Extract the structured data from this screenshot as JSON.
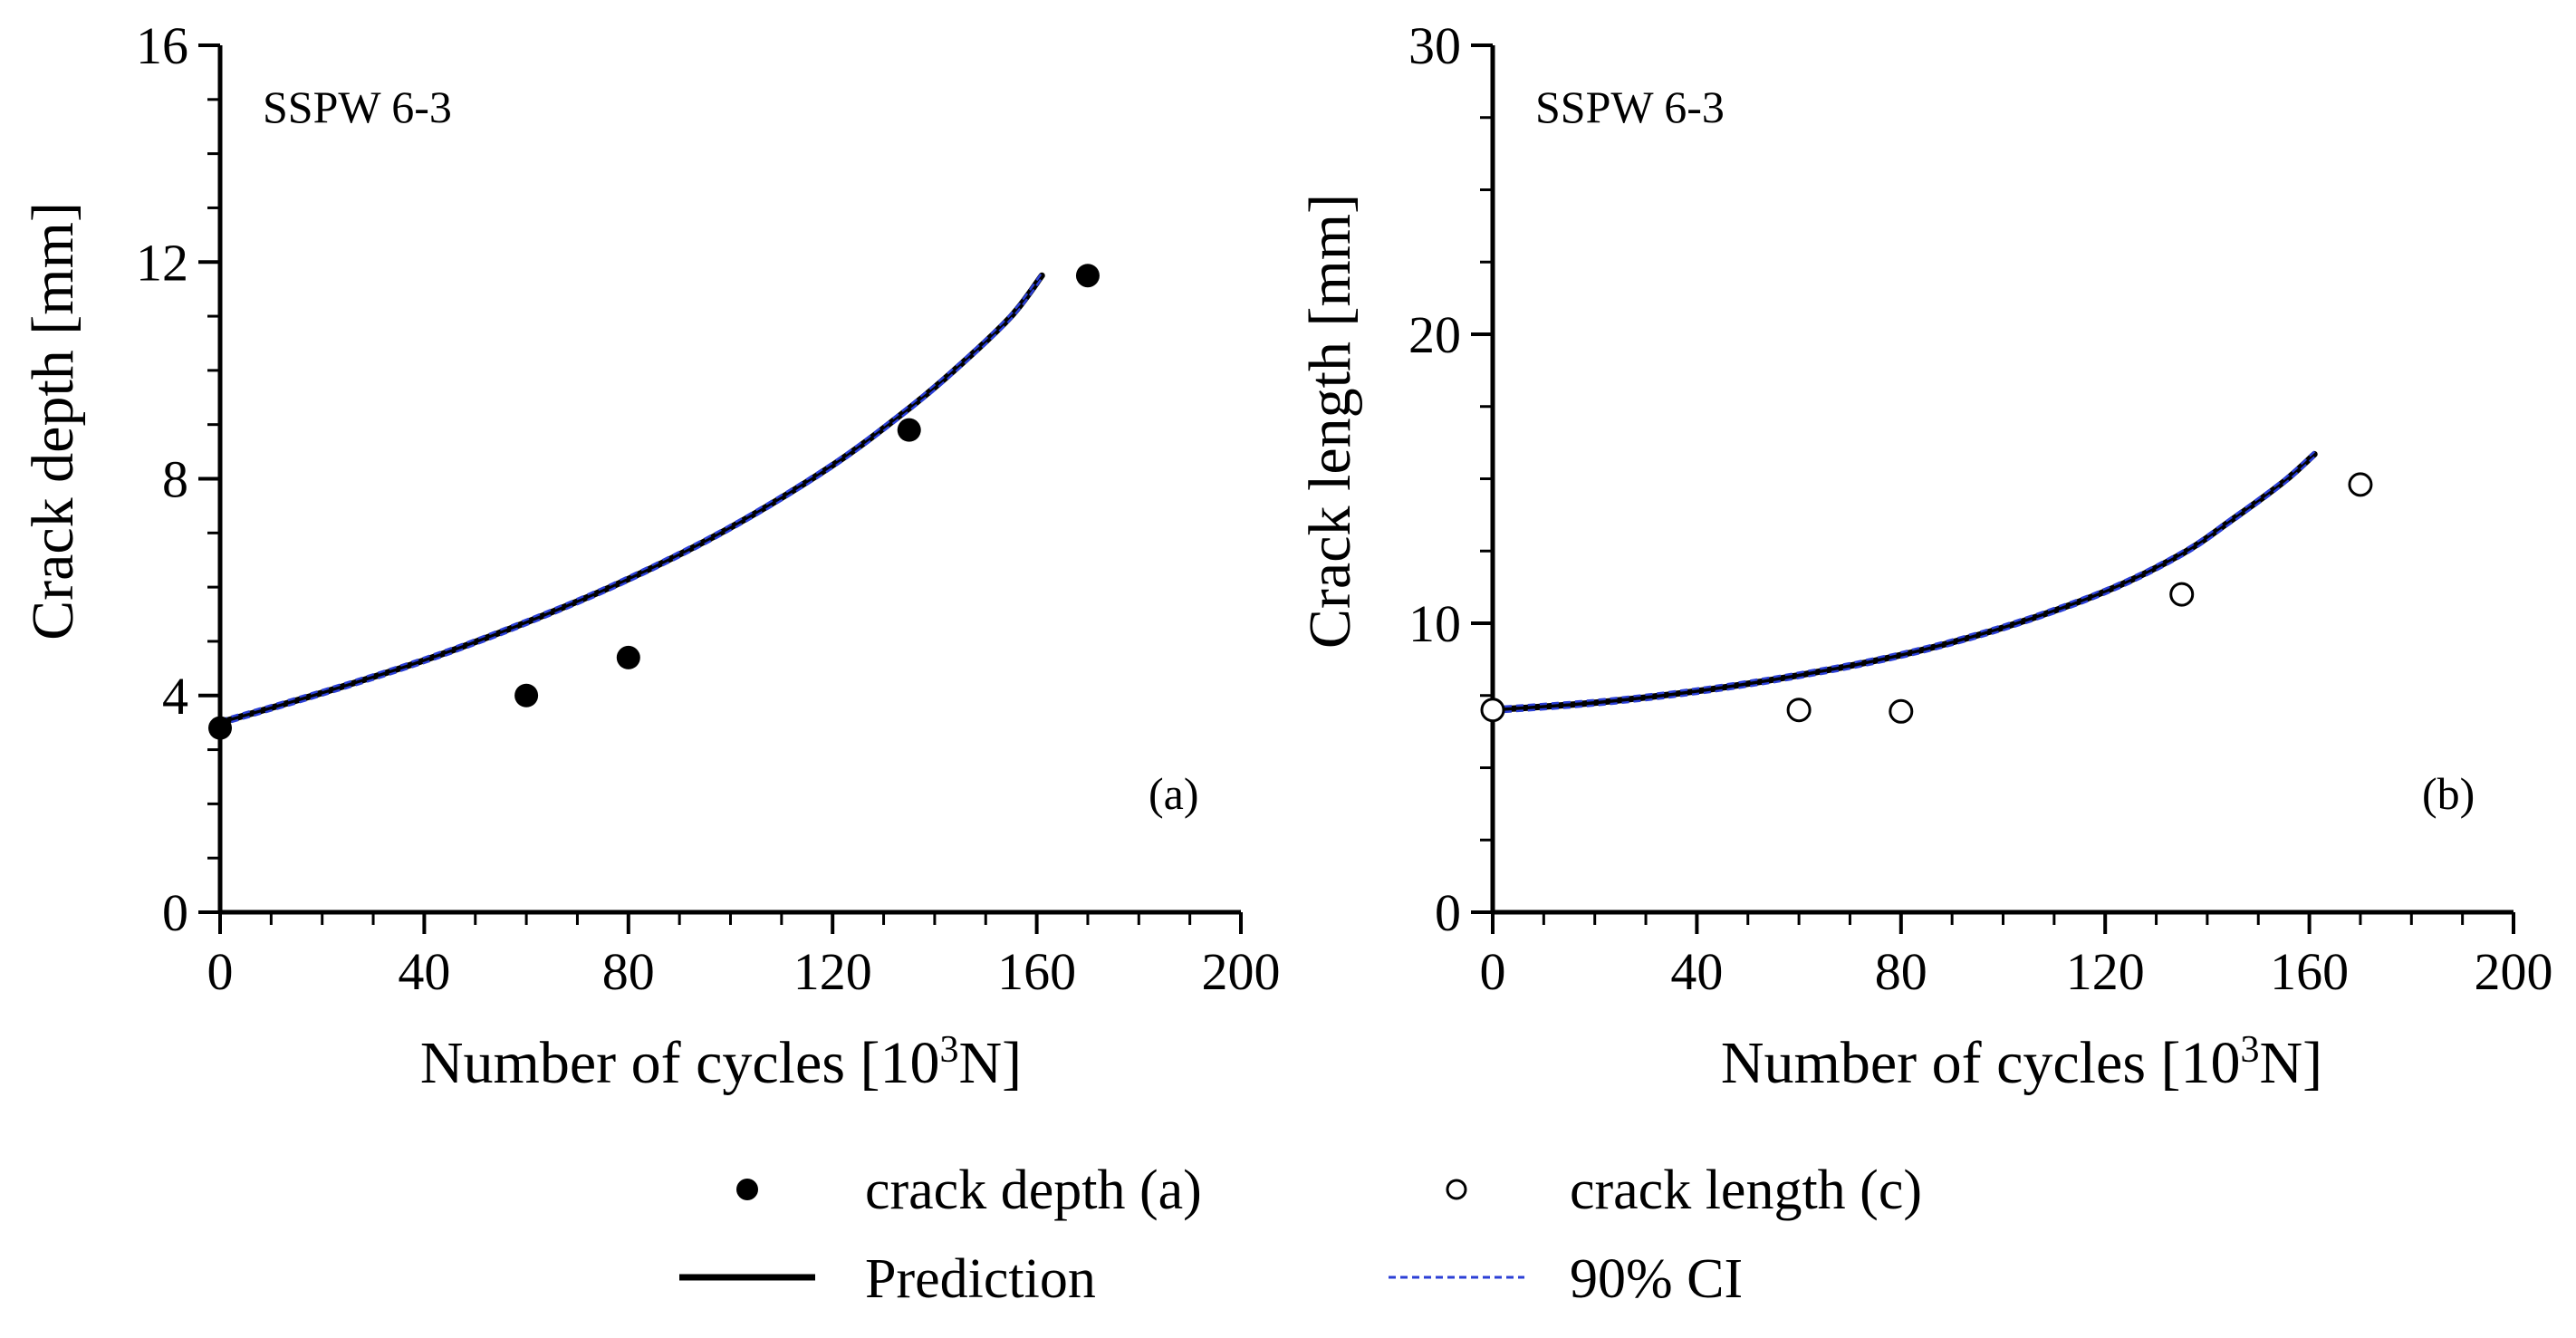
{
  "chart_data": [
    {
      "type": "scatter",
      "panel_label": "(a)",
      "specimen": "SSPW 6-3",
      "xlabel_main": "Number of cycles [10",
      "xlabel_sup": "3",
      "xlabel_end": "N]",
      "ylabel": "Crack depth [mm]",
      "xlim": [
        0,
        200
      ],
      "ylim": [
        0,
        16
      ],
      "xticks": [
        "0",
        "40",
        "80",
        "120",
        "160",
        "200"
      ],
      "yticks": [
        "0",
        "4",
        "8",
        "12",
        "16"
      ],
      "measured": {
        "name": "crack depth (a)",
        "marker": "filled-circle",
        "x": [
          0,
          60,
          80,
          135,
          170
        ],
        "y": [
          3.4,
          4.0,
          4.7,
          8.9,
          11.75
        ]
      },
      "prediction": {
        "x": [
          0,
          20,
          40,
          60,
          80,
          100,
          120,
          135,
          145,
          155,
          161
        ],
        "y": [
          3.5,
          4.05,
          4.65,
          5.35,
          6.15,
          7.1,
          8.25,
          9.3,
          10.1,
          11.0,
          11.75
        ]
      }
    },
    {
      "type": "scatter",
      "panel_label": "(b)",
      "specimen": "SSPW 6-3",
      "xlabel_main": "Number of cycles [10",
      "xlabel_sup": "3",
      "xlabel_end": "N]",
      "ylabel": "Crack length [mm]",
      "xlim": [
        0,
        200
      ],
      "ylim": [
        0,
        30
      ],
      "xticks": [
        "0",
        "40",
        "80",
        "120",
        "160",
        "200"
      ],
      "yticks": [
        "0",
        "10",
        "20",
        "30"
      ],
      "measured": {
        "name": "crack length (c)",
        "marker": "open-circle",
        "x": [
          0,
          60,
          80,
          135,
          170
        ],
        "y": [
          7.0,
          7.0,
          6.95,
          11.0,
          14.8
        ]
      },
      "prediction": {
        "x": [
          0,
          20,
          40,
          60,
          80,
          100,
          120,
          135,
          145,
          155,
          161
        ],
        "y": [
          7.0,
          7.25,
          7.65,
          8.2,
          8.9,
          9.85,
          11.1,
          12.4,
          13.6,
          14.9,
          15.85
        ]
      }
    }
  ],
  "legend": {
    "items": [
      {
        "label": "crack depth (a)",
        "symbol": "filled-circle"
      },
      {
        "label": "crack length (c)",
        "symbol": "open-circle"
      },
      {
        "label": "Prediction",
        "symbol": "solid-line"
      },
      {
        "label": "90% CI",
        "symbol": "dashed-line"
      }
    ]
  },
  "colors": {
    "axis": "#000000",
    "prediction": "#000000",
    "ci": "#2b3fd6"
  }
}
